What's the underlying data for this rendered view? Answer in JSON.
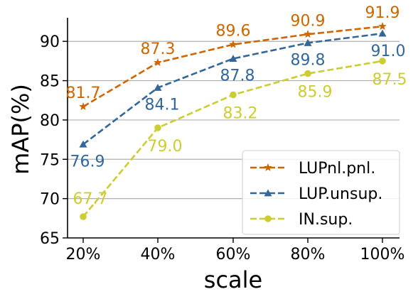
{
  "chart_data": {
    "type": "line",
    "categories": [
      "20%",
      "40%",
      "60%",
      "80%",
      "100%"
    ],
    "xlabel": "scale",
    "ylabel": "mAP(%)",
    "ylim": [
      65,
      93
    ],
    "yticks": [
      65,
      70,
      75,
      80,
      85,
      90
    ],
    "grid": "horizontal",
    "legend_position": "lower-right",
    "series": [
      {
        "name": "LUPnl.pnl.",
        "values": [
          81.7,
          87.3,
          89.6,
          90.9,
          91.9
        ],
        "value_labels": [
          "81.7",
          "87.3",
          "89.6",
          "90.9",
          "91.9"
        ],
        "color": "#cc6600",
        "marker": "star",
        "label_side": "above"
      },
      {
        "name": "LUP.unsup.",
        "values": [
          76.9,
          84.1,
          87.8,
          89.8,
          91.0
        ],
        "value_labels": [
          "76.9",
          "84.1",
          "87.8",
          "89.8",
          "91.0"
        ],
        "color": "#336699",
        "marker": "triangle",
        "label_side": "below"
      },
      {
        "name": "IN.sup.",
        "values": [
          67.7,
          79.0,
          83.2,
          85.9,
          87.5
        ],
        "value_labels": [
          "67.7",
          "79.0",
          "83.2",
          "85.9",
          "87.5"
        ],
        "color": "#cccc33",
        "marker": "circle",
        "label_side": "mixed"
      }
    ]
  }
}
